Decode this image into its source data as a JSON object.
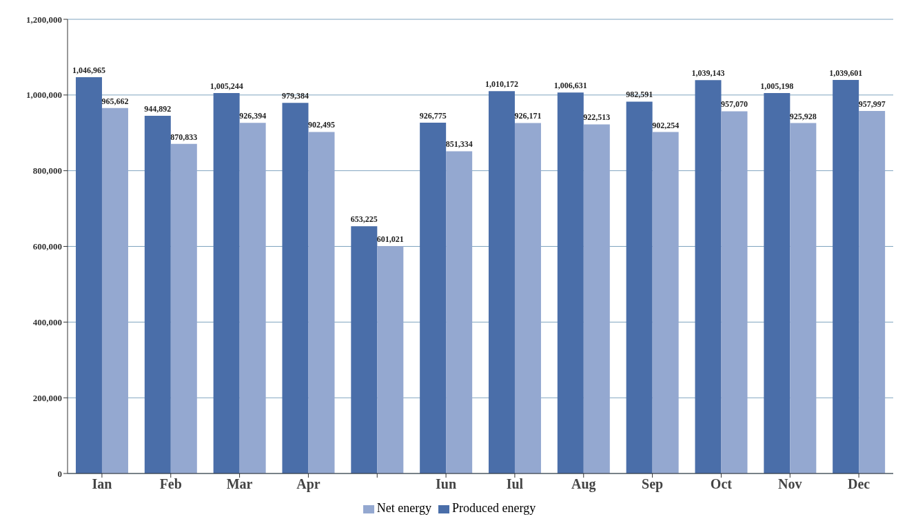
{
  "chart_data": {
    "type": "bar",
    "categories": [
      "Ian",
      "Feb",
      "Mar",
      "Apr",
      null,
      "Iun",
      "Iul",
      "Aug",
      "Sep",
      "Oct",
      "Nov",
      "Dec"
    ],
    "series": [
      {
        "name": "Produced energy",
        "color": "#4a6ea9",
        "values": [
          1046965,
          944892,
          1005244,
          979384,
          653225,
          926775,
          1010172,
          1006631,
          982591,
          1039143,
          1005198,
          1039601
        ],
        "value_labels": [
          "1,046,965",
          "944,892",
          "1,005,244",
          "979,384",
          "653,225",
          "926,775",
          "1,010,172",
          "1,006,631",
          "982,591",
          "1,039,143",
          "1,005,198",
          "1,039,601"
        ]
      },
      {
        "name": "Net energy",
        "color": "#94a8d0",
        "values": [
          965662,
          870833,
          926394,
          902495,
          601021,
          851334,
          926171,
          922513,
          902254,
          957070,
          925928,
          957997
        ],
        "value_labels": [
          "965,662",
          "870,833",
          "926,394",
          "902,495",
          "601,021",
          "851,334",
          "926,171",
          "922,513",
          "902,254",
          "957,070",
          "925,928",
          "957,997"
        ]
      }
    ],
    "ylim": [
      0,
      1200000
    ],
    "yticks": [
      {
        "value": 0,
        "label": "0"
      },
      {
        "value": 200000,
        "label": "200,000"
      },
      {
        "value": 400000,
        "label": "400,000"
      },
      {
        "value": 600000,
        "label": "600,000"
      },
      {
        "value": 800000,
        "label": "800,000"
      },
      {
        "value": 1000000,
        "label": "1,000,000"
      },
      {
        "value": 1200000,
        "label": "1,200,000"
      }
    ],
    "grid": "y",
    "legend": "bottom"
  }
}
